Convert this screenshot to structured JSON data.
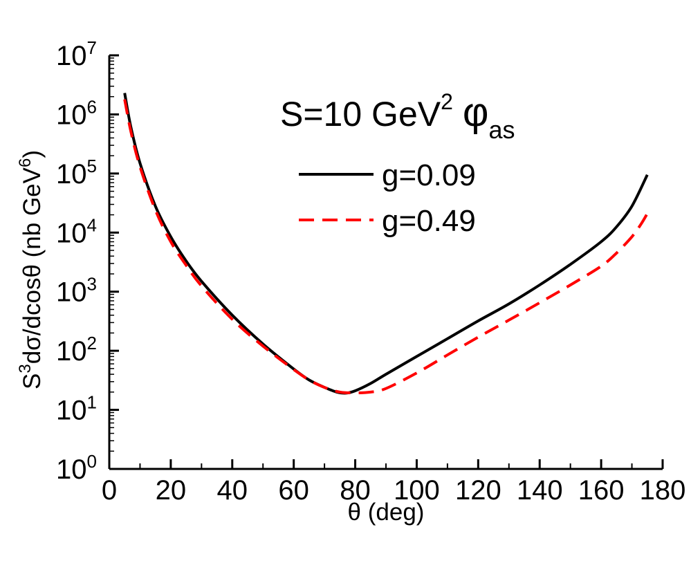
{
  "chart_data": {
    "type": "line",
    "title": "S=10 GeV",
    "title_sup": "2",
    "title_phi": "φ",
    "title_sub": "as",
    "xlabel": "θ (deg)",
    "ylabel_parts": {
      "s": "S",
      "s_sup": "3",
      "mid": "dσ/dcosθ (nb GeV",
      "gev_sup": "6",
      "end": ")"
    },
    "xlim": [
      0,
      180
    ],
    "ylim_log10": [
      0,
      7
    ],
    "x_ticks": [
      0,
      20,
      40,
      60,
      80,
      100,
      120,
      140,
      160,
      180
    ],
    "x_tick_labels": [
      "0",
      "20",
      "40",
      "60",
      "80",
      "100",
      "120",
      "140",
      "160",
      "180"
    ],
    "y_ticks_log10": [
      0,
      1,
      2,
      3,
      4,
      5,
      6,
      7
    ],
    "y_tick_base": "10",
    "y_tick_exponents": [
      "0",
      "1",
      "2",
      "3",
      "4",
      "5",
      "6",
      "7"
    ],
    "legend_position": "upper-right",
    "series": [
      {
        "name": "g=0.09",
        "color": "#000000",
        "dash": "solid",
        "x": [
          5,
          7,
          10,
          15,
          20,
          25,
          30,
          40,
          50,
          60,
          65,
          70,
          74,
          77,
          80,
          85,
          90,
          100,
          110,
          120,
          130,
          140,
          150,
          160,
          165,
          170,
          175
        ],
        "y": [
          2300000,
          620000,
          150000,
          28000,
          8500,
          3300,
          1500,
          400,
          130,
          49,
          32,
          24,
          20,
          19.2,
          21,
          28,
          40,
          80,
          160,
          320,
          620,
          1300,
          2900,
          7000,
          12500,
          28000,
          95000
        ]
      },
      {
        "name": "g=0.49",
        "color": "#ff0000",
        "dash": "dashed",
        "x": [
          5,
          7,
          10,
          15,
          20,
          25,
          30,
          40,
          50,
          60,
          65,
          70,
          75,
          80,
          85,
          90,
          100,
          110,
          120,
          130,
          140,
          150,
          160,
          165,
          170,
          173,
          175
        ],
        "y": [
          1800000,
          520000,
          130000,
          24000,
          7000,
          2800,
          1250,
          340,
          120,
          48,
          32,
          24,
          20,
          19.4,
          20,
          23,
          42,
          85,
          170,
          330,
          650,
          1300,
          2700,
          4500,
          8500,
          14000,
          21000
        ]
      }
    ]
  }
}
